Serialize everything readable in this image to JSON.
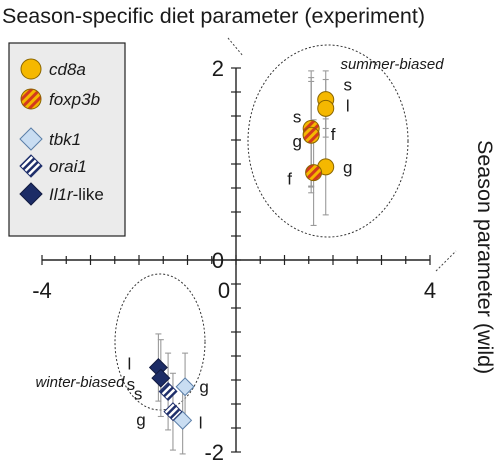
{
  "chart_data": {
    "type": "scatter",
    "xlabel": "Season parameter (wild)",
    "ylabel": "Season-specific diet parameter (experiment)",
    "xlim": [
      -4,
      4
    ],
    "ylim": [
      -2,
      2
    ],
    "x_ticks": [
      "-4",
      "0",
      "4"
    ],
    "y_ticks": [
      "2",
      "0",
      "-2"
    ],
    "grid": false,
    "legend_position": "top-left",
    "colors": {
      "cd8a": "#F5B800",
      "foxp3b_fill": "#F5B800",
      "foxp3b_stripe": "#D23A1E",
      "tbk1": "#C9DDF2",
      "orai1_fill": "#ffffff",
      "orai1_stripe": "#1F2F6B",
      "il1r": "#1C2C66",
      "errorbar": "#9a9a9a"
    },
    "legend": [
      {
        "gene": "cd8a",
        "suffix": "",
        "marker": "circle",
        "fill": "solid-gold"
      },
      {
        "gene": "foxp3b",
        "suffix": "",
        "marker": "circle",
        "fill": "striped-gold-red"
      },
      {
        "gene": "tbk1",
        "suffix": "",
        "marker": "diamond",
        "fill": "solid-light-blue"
      },
      {
        "gene": "orai1",
        "suffix": "",
        "marker": "diamond",
        "fill": "striped-navy-white"
      },
      {
        "gene": "Il1r",
        "suffix": "-like",
        "marker": "diamond",
        "fill": "solid-navy"
      }
    ],
    "groups": [
      {
        "label": "summer-biased"
      },
      {
        "label": "winter-biased"
      }
    ],
    "series": [
      {
        "name": "cd8a",
        "points": [
          {
            "label": "s",
            "x": 1.85,
            "y": 1.67,
            "err": 0.3
          },
          {
            "label": "l",
            "x": 1.85,
            "y": 1.58,
            "err": 0.3
          },
          {
            "label": "f",
            "x": 1.55,
            "y": 1.31,
            "err": 0.55
          },
          {
            "label": "g",
            "x": 1.85,
            "y": 0.97,
            "err": 0.5
          }
        ]
      },
      {
        "name": "foxp3b",
        "points": [
          {
            "label": "s",
            "x": 1.55,
            "y": 1.37,
            "err": 0.6
          },
          {
            "label": "g",
            "x": 1.55,
            "y": 1.3,
            "err": 0.6
          },
          {
            "label": "f",
            "x": 1.6,
            "y": 0.91,
            "err": 0.55
          }
        ]
      },
      {
        "name": "tbk1",
        "points": [
          {
            "label": "g",
            "x": -1.05,
            "y": -1.32,
            "err": 0.35
          },
          {
            "label": "l",
            "x": -1.1,
            "y": -1.67,
            "err": 0.35
          }
        ]
      },
      {
        "name": "orai1",
        "points": [
          {
            "label": "s",
            "x": -1.4,
            "y": -1.37,
            "err": 0.4
          },
          {
            "label": "g",
            "x": -1.3,
            "y": -1.58,
            "err": 0.4
          }
        ]
      },
      {
        "name": "Il1r-like",
        "points": [
          {
            "label": "l",
            "x": -1.6,
            "y": -1.12,
            "err": 0.35
          },
          {
            "label": "s",
            "x": -1.55,
            "y": -1.23,
            "err": 0.4
          }
        ]
      }
    ]
  }
}
